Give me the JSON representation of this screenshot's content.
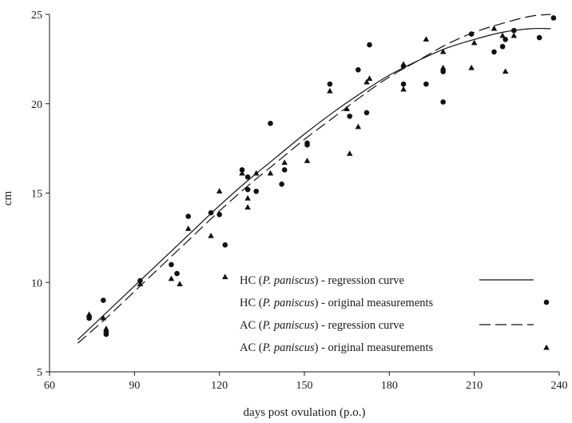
{
  "chart_data": {
    "type": "scatter",
    "title": "",
    "xlabel": "days post ovulation (p.o.)",
    "ylabel": "cm",
    "xlim": [
      60,
      240
    ],
    "ylim": [
      5,
      25
    ],
    "xticks": [
      60,
      90,
      120,
      150,
      180,
      210,
      240
    ],
    "yticks": [
      5,
      10,
      15,
      20,
      25
    ],
    "grid": false,
    "legend_position": "bottom-right",
    "series": [
      {
        "legend_prefix": "HC (",
        "legend_species": "P. paniscus",
        "legend_suffix": ") - regression curve",
        "kind": "line",
        "line_style": "solid",
        "x": [
          70,
          80,
          90,
          100,
          110,
          120,
          130,
          140,
          150,
          160,
          170,
          180,
          190,
          200,
          210,
          220,
          230,
          237
        ],
        "y": [
          6.8,
          8.3,
          9.8,
          11.3,
          12.8,
          14.3,
          15.7,
          17.0,
          18.3,
          19.5,
          20.6,
          21.6,
          22.4,
          23.1,
          23.6,
          24.0,
          24.2,
          24.2
        ]
      },
      {
        "legend_prefix": "HC (",
        "legend_species": "P. paniscus",
        "legend_suffix": ") - original measurements",
        "kind": "scatter",
        "marker": "circle",
        "x": [
          74,
          74,
          79,
          80,
          92,
          103,
          105,
          109,
          117,
          120,
          122,
          128,
          130,
          130,
          133,
          138,
          142,
          143,
          151,
          151,
          159,
          166,
          169,
          172,
          173,
          185,
          185,
          193,
          199,
          199,
          209,
          217,
          220,
          221,
          224,
          233,
          238
        ],
        "y": [
          8.0,
          8.1,
          9.0,
          7.1,
          10.1,
          11.0,
          10.5,
          13.7,
          13.9,
          13.8,
          12.1,
          16.3,
          15.2,
          15.9,
          15.1,
          18.9,
          15.5,
          16.3,
          17.7,
          17.8,
          21.1,
          19.3,
          21.9,
          19.5,
          23.3,
          22.1,
          21.1,
          21.1,
          20.1,
          21.8,
          23.9,
          22.9,
          23.2,
          23.6,
          24.1,
          23.7,
          24.8
        ]
      },
      {
        "legend_prefix": "AC (",
        "legend_species": "P. paniscus",
        "legend_suffix": ") - regression curve",
        "kind": "line",
        "line_style": "dashed",
        "x": [
          70,
          80,
          90,
          100,
          110,
          120,
          130,
          140,
          150,
          160,
          170,
          180,
          190,
          200,
          210,
          220,
          230,
          237
        ],
        "y": [
          6.6,
          8.0,
          9.5,
          11.0,
          12.5,
          14.0,
          15.4,
          16.7,
          18.0,
          19.2,
          20.4,
          21.5,
          22.4,
          23.3,
          24.0,
          24.5,
          24.9,
          25.0
        ]
      },
      {
        "legend_prefix": "AC (",
        "legend_species": "P. paniscus",
        "legend_suffix": ") - original measurements",
        "kind": "scatter",
        "marker": "triangle",
        "x": [
          74,
          79,
          80,
          80,
          92,
          103,
          106,
          109,
          117,
          120,
          122,
          128,
          130,
          130,
          133,
          138,
          143,
          151,
          159,
          165,
          166,
          169,
          172,
          173,
          185,
          185,
          193,
          199,
          199,
          209,
          210,
          217,
          220,
          221,
          224
        ],
        "y": [
          8.2,
          8.0,
          7.4,
          7.3,
          9.9,
          10.2,
          9.9,
          13.0,
          12.6,
          15.1,
          10.3,
          16.1,
          14.2,
          14.7,
          16.1,
          16.1,
          16.7,
          16.8,
          20.7,
          19.7,
          17.2,
          18.7,
          21.2,
          21.4,
          20.8,
          22.2,
          23.6,
          22.9,
          22.0,
          22.0,
          23.4,
          24.2,
          23.8,
          21.8,
          23.8
        ]
      }
    ]
  }
}
